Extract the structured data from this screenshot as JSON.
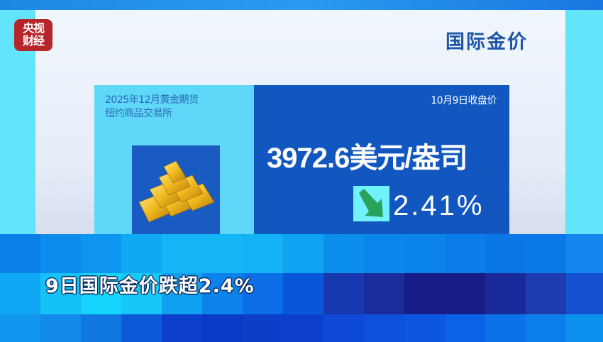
{
  "logo": {
    "line1": "央视",
    "line2": "财经"
  },
  "header": {
    "title": "国际金价"
  },
  "card": {
    "contract": "2025年12月黄金期货",
    "exchange": "纽约商品交易所",
    "date_label": "10月9日收盘价",
    "price": "3972.6美元/盎司",
    "change_direction": "down",
    "change_percent": "2.41%",
    "arrow_color": "#2aa35a",
    "icon": "gold-bars-icon"
  },
  "caption": {
    "text": "9日国际金价跌超2.4%"
  }
}
